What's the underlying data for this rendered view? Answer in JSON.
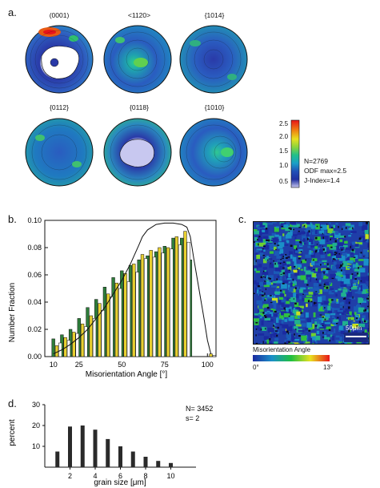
{
  "panel_a": {
    "letter": "a.",
    "pole_figures": [
      {
        "title": "(0001)"
      },
      {
        "title": "<1120>"
      },
      {
        "title": "{1014}"
      },
      {
        "title": "{0112}"
      },
      {
        "title": "{0118}"
      },
      {
        "title": "{1010}"
      }
    ],
    "colorbar": {
      "ticks": [
        "2.5",
        "2.0",
        "1.5",
        "1.0",
        "0.5"
      ],
      "colors": [
        "#e8141a",
        "#f07a12",
        "#e8e020",
        "#8ad43c",
        "#20c08a",
        "#1aa0c8",
        "#2050b8",
        "#2030a0",
        "#c8c8f0"
      ]
    },
    "stats": {
      "n": "N=2769",
      "odf_max": "ODF max=2.5",
      "j_index": "J-Index=1.4"
    }
  },
  "panel_b": {
    "letter": "b.",
    "ylabel": "Number Fraction",
    "xlabel": "Misorientation Angle [°]",
    "x_ticks": [
      "10",
      "25",
      "50",
      "75",
      "100"
    ],
    "y_ticks": [
      "0.00",
      "0.02",
      "0.04",
      "0.06",
      "0.08",
      "0.10"
    ]
  },
  "panel_c": {
    "letter": "c.",
    "scale_bar": "50μm",
    "legend_title": "Misorientation Angle",
    "legend_min": "0°",
    "legend_max": "13°"
  },
  "panel_d": {
    "letter": "d.",
    "ylabel": "percent",
    "xlabel": "grain size [μm]",
    "x_ticks": [
      "2",
      "4",
      "6",
      "8",
      "10"
    ],
    "y_ticks": [
      "10",
      "20",
      "30"
    ],
    "stats_n": "N= 3452",
    "stats_s": "s= 2"
  },
  "chart_data": [
    {
      "type": "bar",
      "id": "misorientation-histogram",
      "xlabel": "Misorientation Angle [°]",
      "ylabel": "Number Fraction",
      "xlim": [
        5,
        105
      ],
      "ylim": [
        0,
        0.1
      ],
      "series": [
        {
          "color": "#2e7d3a",
          "x": [
            10,
            15,
            20,
            25,
            30,
            35,
            40,
            45,
            50,
            55,
            60,
            65,
            70,
            75,
            80,
            85,
            90,
            95,
            100
          ],
          "values": [
            0.013,
            0.016,
            0.02,
            0.028,
            0.036,
            0.042,
            0.051,
            0.058,
            0.063,
            0.067,
            0.071,
            0.074,
            0.077,
            0.081,
            0.087,
            0.087,
            0.071,
            0.0,
            0.0
          ]
        },
        {
          "color": "#e8d030",
          "x": [
            12,
            17,
            22,
            27,
            32,
            37,
            42,
            47,
            52,
            57,
            62,
            67,
            72,
            77,
            82,
            87,
            92,
            97,
            102
          ],
          "values": [
            0.008,
            0.014,
            0.018,
            0.024,
            0.03,
            0.039,
            0.046,
            0.054,
            0.061,
            0.068,
            0.075,
            0.078,
            0.08,
            0.08,
            0.088,
            0.092,
            0.0,
            0.0,
            0.002
          ]
        },
        {
          "color": "#ffffff",
          "x": [
            14,
            19,
            24,
            29,
            34,
            39,
            44,
            49,
            54,
            59,
            64,
            69,
            74,
            79,
            84,
            89,
            94,
            99,
            104
          ],
          "values": [
            0.01,
            0.012,
            0.017,
            0.022,
            0.028,
            0.034,
            0.044,
            0.05,
            0.055,
            0.062,
            0.072,
            0.073,
            0.076,
            0.079,
            0.082,
            0.084,
            0.0,
            0.0,
            0.001
          ]
        }
      ],
      "curve": {
        "x": [
          10,
          15,
          20,
          25,
          30,
          35,
          40,
          45,
          50,
          55,
          60,
          62,
          65,
          70,
          75,
          80,
          85,
          88,
          90,
          92,
          95,
          98,
          100,
          102
        ],
        "values": [
          0.002,
          0.005,
          0.009,
          0.014,
          0.02,
          0.028,
          0.036,
          0.046,
          0.056,
          0.068,
          0.082,
          0.088,
          0.093,
          0.097,
          0.098,
          0.098,
          0.097,
          0.095,
          0.088,
          0.072,
          0.05,
          0.028,
          0.012,
          0.002
        ]
      }
    },
    {
      "type": "bar",
      "id": "grain-size-histogram",
      "xlabel": "grain size [μm]",
      "ylabel": "percent",
      "xlim": [
        0,
        12
      ],
      "ylim": [
        0,
        30
      ],
      "categories": [
        1,
        2,
        3,
        4,
        5,
        6,
        7,
        8,
        9,
        10
      ],
      "values": [
        7.5,
        19.5,
        20,
        18,
        13.5,
        10,
        7.5,
        5,
        3,
        2
      ]
    }
  ]
}
